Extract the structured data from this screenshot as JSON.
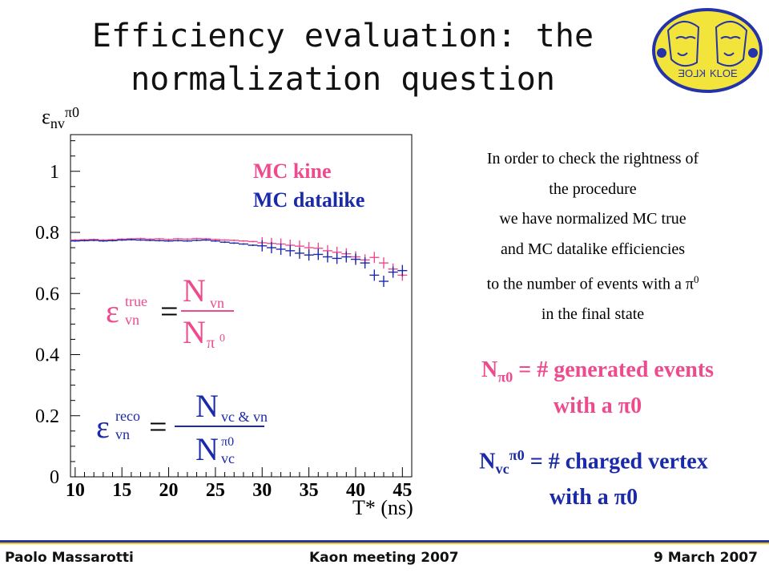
{
  "slide": {
    "title_line1": "Efficiency evaluation: the",
    "title_line2": "normalization question",
    "explanation": [
      "In order to check the rightness of",
      "the procedure",
      "we have normalized MC true",
      "and MC datalike efficiencies",
      "to the number of events with a π",
      "in the final state"
    ],
    "explanation_sup": "0",
    "def1_lhs": "N",
    "def1_sub": "π0",
    "def1_rhs": " = # generated events",
    "def1_line2": "with a π0",
    "def2_lhs": "N",
    "def2_sub": "vc",
    "def2_sup": "π0",
    "def2_rhs": " = # charged vertex",
    "def2_line2": "with a π0",
    "footer_left": "Paolo Massarotti",
    "footer_center": "Kaon  meeting  2007",
    "footer_right": "9 March 2007",
    "logo_text": "KLOE",
    "logo_mirror_text": "KLOE"
  },
  "colors": {
    "mc_kine": "#ee4b8f",
    "mc_datalike": "#1a2aa8",
    "logo_fill": "#f2e43a",
    "logo_border": "#2434a8",
    "footer_blue": "#2a35a5",
    "footer_yellow": "#f0c814"
  },
  "chart_data": {
    "type": "scatter",
    "ylabel_symbol": "ε",
    "ylabel_sub": "nv",
    "ylabel_sup": "π0",
    "xlabel": "T* (ns)",
    "xlim": [
      9.5,
      46
    ],
    "ylim": [
      0,
      1.12
    ],
    "x_ticks": [
      10,
      15,
      20,
      25,
      30,
      35,
      40,
      45
    ],
    "y_ticks": [
      0,
      0.2,
      0.4,
      0.6,
      0.8,
      1
    ],
    "y_tick_labels": [
      "0",
      "0.2",
      "0.4",
      "0.6",
      "0.8",
      "1"
    ],
    "legend": [
      "MC kine",
      "MC datalike"
    ],
    "formula1": {
      "lhs": "ε",
      "lhs_sup": "true",
      "lhs_sub": "vn",
      "num": "N",
      "num_sub": "vn",
      "den": "N",
      "den_sub": "π",
      "den_subsup": "0"
    },
    "formula2": {
      "lhs": "ε",
      "lhs_sup": "reco",
      "lhs_sub": "vn",
      "num": "N",
      "num_sub": "vc & vn",
      "den": "N",
      "den_sup": "π0",
      "den_sub": "vc"
    },
    "series": [
      {
        "name": "MC kine",
        "x": [
          10,
          11,
          12,
          13,
          14,
          15,
          16,
          17,
          18,
          19,
          20,
          21,
          22,
          23,
          24,
          25,
          26,
          27,
          28,
          29,
          30,
          31,
          32,
          33,
          34,
          35,
          36,
          37,
          38,
          39,
          40,
          41,
          42,
          43,
          44,
          45
        ],
        "y": [
          0.775,
          0.776,
          0.777,
          0.775,
          0.776,
          0.778,
          0.779,
          0.78,
          0.778,
          0.779,
          0.777,
          0.779,
          0.778,
          0.78,
          0.779,
          0.777,
          0.775,
          0.774,
          0.772,
          0.77,
          0.766,
          0.764,
          0.762,
          0.758,
          0.755,
          0.75,
          0.748,
          0.74,
          0.735,
          0.73,
          0.72,
          0.71,
          0.718,
          0.7,
          0.68,
          0.66
        ]
      },
      {
        "name": "MC datalike",
        "x": [
          10,
          11,
          12,
          13,
          14,
          15,
          16,
          17,
          18,
          19,
          20,
          21,
          22,
          23,
          24,
          25,
          26,
          27,
          28,
          29,
          30,
          31,
          32,
          33,
          34,
          35,
          36,
          37,
          38,
          39,
          40,
          41,
          42,
          43,
          44,
          45
        ],
        "y": [
          0.772,
          0.773,
          0.774,
          0.772,
          0.773,
          0.775,
          0.776,
          0.775,
          0.774,
          0.773,
          0.772,
          0.773,
          0.772,
          0.774,
          0.775,
          0.772,
          0.768,
          0.765,
          0.762,
          0.758,
          0.756,
          0.75,
          0.745,
          0.74,
          0.732,
          0.726,
          0.728,
          0.72,
          0.715,
          0.72,
          0.712,
          0.7,
          0.66,
          0.64,
          0.67,
          0.675
        ]
      }
    ]
  }
}
